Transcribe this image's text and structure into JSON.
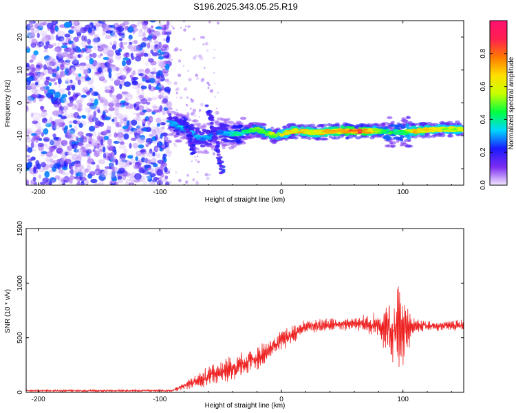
{
  "title": "S196.2025.343.05.25.R19",
  "chart_data": [
    {
      "type": "heatmap",
      "title": "S196.2025.343.05.25.R19",
      "xlabel": "Height of straight line (km)",
      "ylabel": "Frequency (Hz)",
      "xlim": [
        -210,
        150
      ],
      "ylim": [
        -25,
        25
      ],
      "x_ticks": [
        -200,
        -100,
        0,
        100
      ],
      "y_ticks": [
        -20,
        -10,
        0,
        10,
        20
      ],
      "colorbar": {
        "label": "Normalized spectral amplitude",
        "range": [
          0.0,
          1.0
        ],
        "ticks": [
          "0.0",
          "0.2",
          "0.4",
          "0.6",
          "0.8"
        ],
        "colors": [
          "#f4e8ff",
          "#7b2cf0",
          "#1a1aff",
          "#00d8ff",
          "#00ff40",
          "#c8ff00",
          "#ffe000",
          "#ff7a00",
          "#ff2050",
          "#ff1070"
        ]
      },
      "noise_region": {
        "x_range": [
          -210,
          -92
        ],
        "frequency_range": [
          -25,
          25
        ],
        "typical_amplitude": 0.15
      },
      "ridge_points": [
        {
          "x": -92,
          "frequency": -6,
          "amplitude": 0.3
        },
        {
          "x": -80,
          "frequency": -8,
          "amplitude": 0.35
        },
        {
          "x": -65,
          "frequency": -11,
          "amplitude": 0.3
        },
        {
          "x": -50,
          "frequency": -9,
          "amplitude": 0.3
        },
        {
          "x": -35,
          "frequency": -9.5,
          "amplitude": 0.4
        },
        {
          "x": -20,
          "frequency": -8,
          "amplitude": 0.5
        },
        {
          "x": -5,
          "frequency": -10,
          "amplitude": 0.55
        },
        {
          "x": 10,
          "frequency": -8.5,
          "amplitude": 0.7
        },
        {
          "x": 30,
          "frequency": -9,
          "amplitude": 0.65
        },
        {
          "x": 50,
          "frequency": -8.5,
          "amplitude": 0.75
        },
        {
          "x": 65,
          "frequency": -8.5,
          "amplitude": 0.9
        },
        {
          "x": 80,
          "frequency": -8.5,
          "amplitude": 0.5
        },
        {
          "x": 100,
          "frequency": -9,
          "amplitude": 0.45
        },
        {
          "x": 110,
          "frequency": -8.5,
          "amplitude": 0.7
        },
        {
          "x": 130,
          "frequency": -8,
          "amplitude": 0.6
        },
        {
          "x": 150,
          "frequency": -8,
          "amplitude": 0.6
        }
      ],
      "branches": [
        {
          "from": {
            "x": -60,
            "frequency": -1
          },
          "to": {
            "x": -48,
            "frequency": -22
          }
        },
        {
          "from": {
            "x": -80,
            "frequency": -5
          },
          "to": {
            "x": -72,
            "frequency": -15
          }
        }
      ]
    },
    {
      "type": "line",
      "xlabel": "Height of straight line (km)",
      "ylabel": "SNR (10 * v/v)",
      "xlim": [
        -210,
        150
      ],
      "ylim": [
        0,
        1500
      ],
      "x_ticks": [
        -200,
        -100,
        0,
        100
      ],
      "y_ticks": [
        0,
        500,
        1000,
        1500
      ],
      "color": "#ee2020",
      "envelope": [
        {
          "x": -210,
          "mean": 15,
          "spread": 20
        },
        {
          "x": -90,
          "mean": 15,
          "spread": 20
        },
        {
          "x": -80,
          "mean": 60,
          "spread": 80
        },
        {
          "x": -60,
          "mean": 150,
          "spread": 200
        },
        {
          "x": -40,
          "mean": 220,
          "spread": 250
        },
        {
          "x": -20,
          "mean": 320,
          "spread": 250
        },
        {
          "x": 0,
          "mean": 470,
          "spread": 200
        },
        {
          "x": 20,
          "mean": 600,
          "spread": 150
        },
        {
          "x": 40,
          "mean": 620,
          "spread": 130
        },
        {
          "x": 60,
          "mean": 630,
          "spread": 130
        },
        {
          "x": 80,
          "mean": 620,
          "spread": 250
        },
        {
          "x": 90,
          "mean": 550,
          "spread": 700
        },
        {
          "x": 97,
          "mean": 600,
          "spread": 900
        },
        {
          "x": 103,
          "mean": 550,
          "spread": 500
        },
        {
          "x": 110,
          "mean": 610,
          "spread": 120
        },
        {
          "x": 150,
          "mean": 610,
          "spread": 120
        }
      ]
    }
  ]
}
